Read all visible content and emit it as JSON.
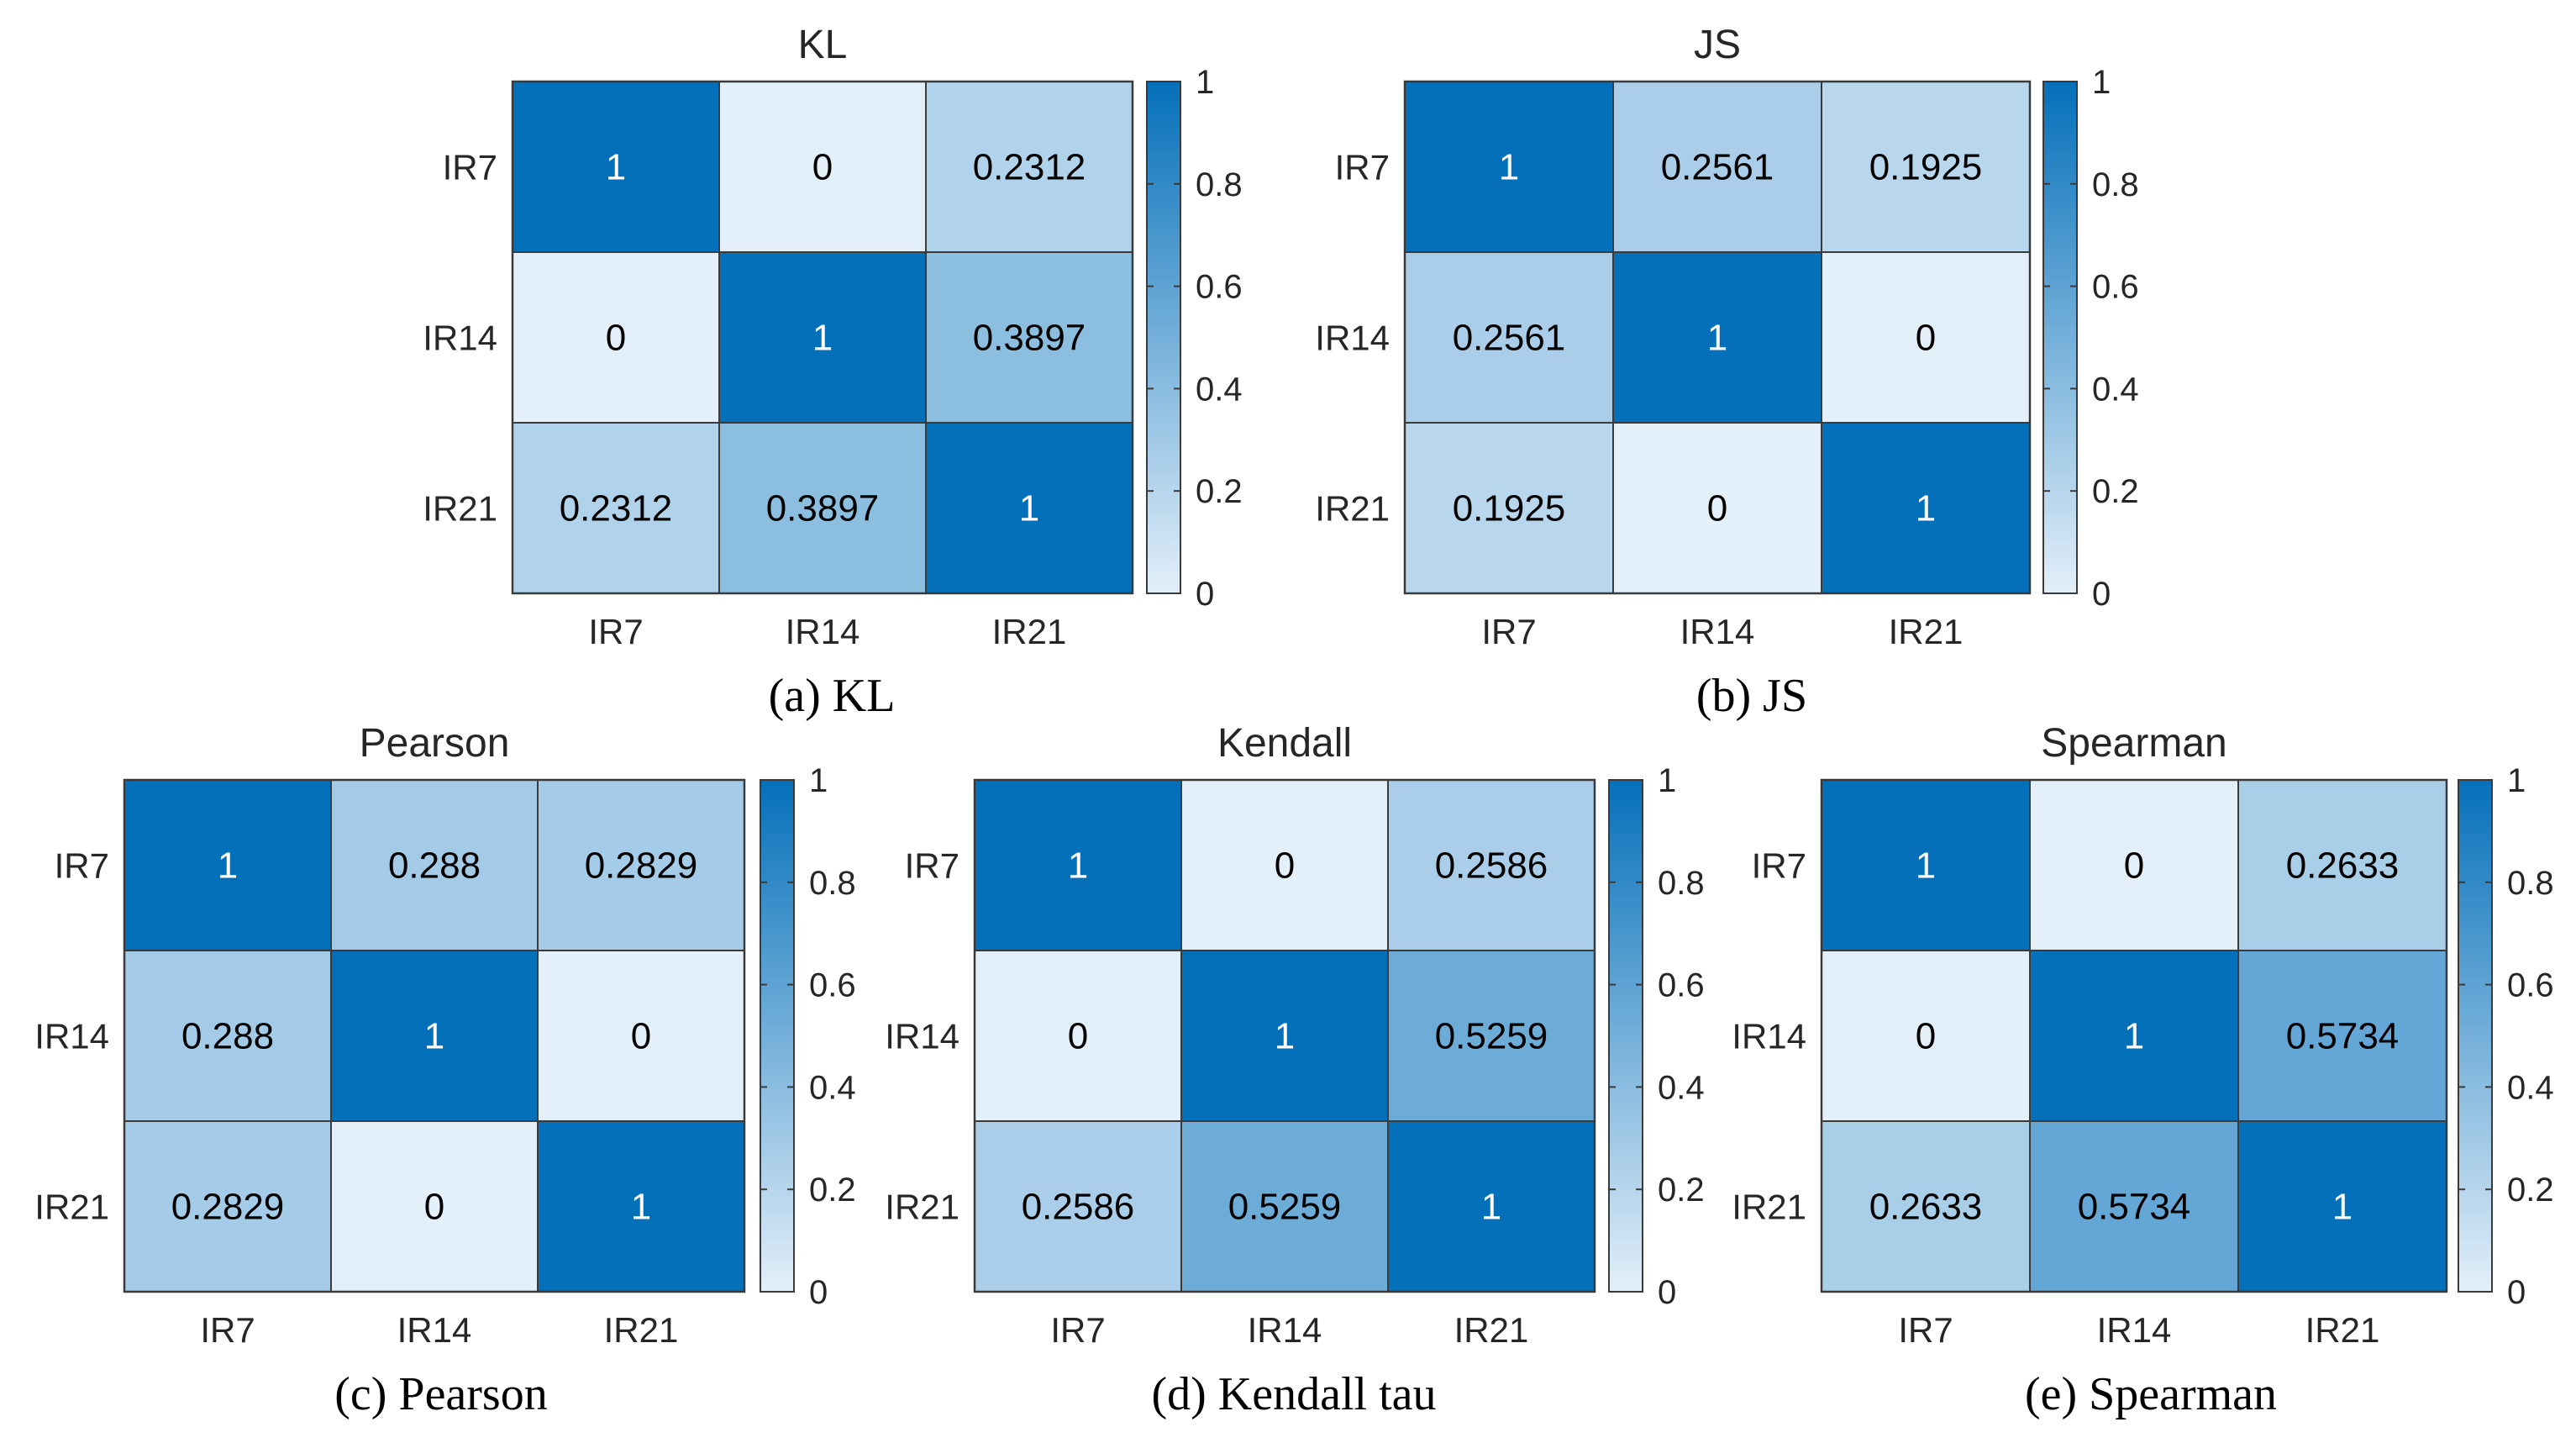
{
  "colors": {
    "low": "#e3eff9",
    "high": "#0570ba",
    "grid": "#3a3a3a",
    "text_dark": "#000000",
    "text_light": "#ffffff"
  },
  "chart_data": [
    {
      "type": "heatmap",
      "title": "KL",
      "caption": "(a) KL",
      "rows": [
        "IR7",
        "IR14",
        "IR21"
      ],
      "cols": [
        "IR7",
        "IR14",
        "IR21"
      ],
      "values": [
        [
          1,
          0,
          0.2312
        ],
        [
          0,
          1,
          0.3897
        ],
        [
          0.2312,
          0.3897,
          1
        ]
      ],
      "labels": [
        [
          "1",
          "0",
          "0.2312"
        ],
        [
          "0",
          "1",
          "0.3897"
        ],
        [
          "0.2312",
          "0.3897",
          "1"
        ]
      ],
      "colorbar": {
        "range": [
          0,
          1
        ],
        "ticks": [
          "0",
          "0.2",
          "0.4",
          "0.6",
          "0.8",
          "1"
        ]
      }
    },
    {
      "type": "heatmap",
      "title": "JS",
      "caption": "(b) JS",
      "rows": [
        "IR7",
        "IR14",
        "IR21"
      ],
      "cols": [
        "IR7",
        "IR14",
        "IR21"
      ],
      "values": [
        [
          1,
          0.2561,
          0.1925
        ],
        [
          0.2561,
          1,
          0
        ],
        [
          0.1925,
          0,
          1
        ]
      ],
      "labels": [
        [
          "1",
          "0.2561",
          "0.1925"
        ],
        [
          "0.2561",
          "1",
          "0"
        ],
        [
          "0.1925",
          "0",
          "1"
        ]
      ],
      "colorbar": {
        "range": [
          0,
          1
        ],
        "ticks": [
          "0",
          "0.2",
          "0.4",
          "0.6",
          "0.8",
          "1"
        ]
      }
    },
    {
      "type": "heatmap",
      "title": "Pearson",
      "caption": "(c) Pearson",
      "rows": [
        "IR7",
        "IR14",
        "IR21"
      ],
      "cols": [
        "IR7",
        "IR14",
        "IR21"
      ],
      "values": [
        [
          1,
          0.288,
          0.2829
        ],
        [
          0.288,
          1,
          0
        ],
        [
          0.2829,
          0,
          1
        ]
      ],
      "labels": [
        [
          "1",
          "0.288",
          "0.2829"
        ],
        [
          "0.288",
          "1",
          "0"
        ],
        [
          "0.2829",
          "0",
          "1"
        ]
      ],
      "colorbar": {
        "range": [
          0,
          1
        ],
        "ticks": [
          "0",
          "0.2",
          "0.4",
          "0.6",
          "0.8",
          "1"
        ]
      }
    },
    {
      "type": "heatmap",
      "title": "Kendall",
      "caption": "(d) Kendall tau",
      "rows": [
        "IR7",
        "IR14",
        "IR21"
      ],
      "cols": [
        "IR7",
        "IR14",
        "IR21"
      ],
      "values": [
        [
          1,
          0,
          0.2586
        ],
        [
          0,
          1,
          0.5259
        ],
        [
          0.2586,
          0.5259,
          1
        ]
      ],
      "labels": [
        [
          "1",
          "0",
          "0.2586"
        ],
        [
          "0",
          "1",
          "0.5259"
        ],
        [
          "0.2586",
          "0.5259",
          "1"
        ]
      ],
      "colorbar": {
        "range": [
          0,
          1
        ],
        "ticks": [
          "0",
          "0.2",
          "0.4",
          "0.6",
          "0.8",
          "1"
        ]
      }
    },
    {
      "type": "heatmap",
      "title": "Spearman",
      "caption": "(e) Spearman",
      "rows": [
        "IR7",
        "IR14",
        "IR21"
      ],
      "cols": [
        "IR7",
        "IR14",
        "IR21"
      ],
      "values": [
        [
          1,
          0,
          0.2633
        ],
        [
          0,
          1,
          0.5734
        ],
        [
          0.2633,
          0.5734,
          1
        ]
      ],
      "labels": [
        [
          "1",
          "0",
          "0.2633"
        ],
        [
          "0",
          "1",
          "0.5734"
        ],
        [
          "0.2633",
          "0.5734",
          "1"
        ]
      ],
      "colorbar": {
        "range": [
          0,
          1
        ],
        "ticks": [
          "0",
          "0.2",
          "0.4",
          "0.6",
          "0.8",
          "1"
        ]
      }
    }
  ]
}
